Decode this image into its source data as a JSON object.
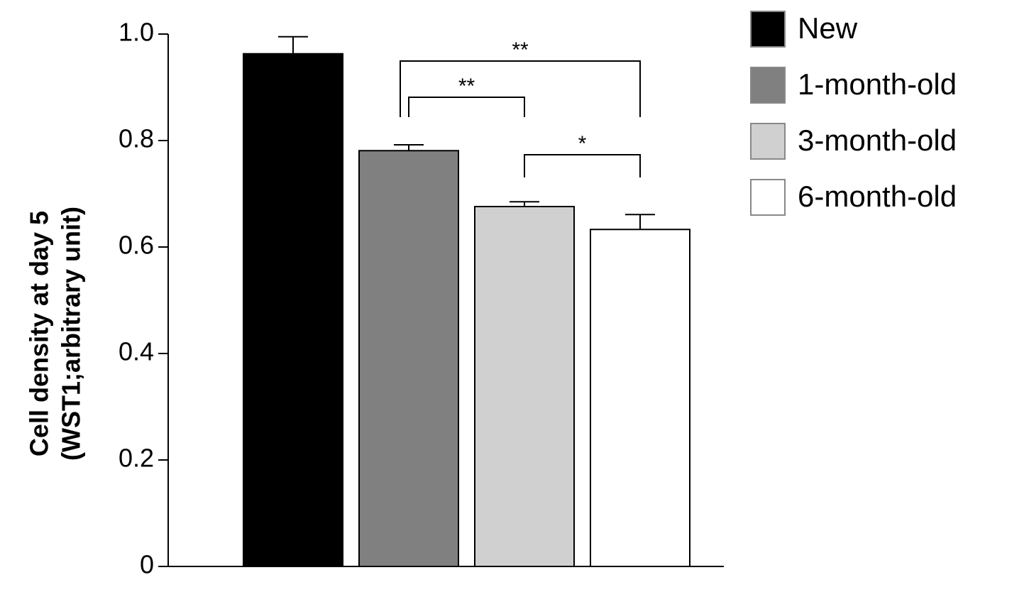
{
  "chart_data": {
    "type": "bar",
    "y_label": [
      "Cell density at day 5",
      "(WST1;arbitrary unit)"
    ],
    "categories": [
      "New",
      "1-month-old",
      "3-month-old",
      "6-month-old"
    ],
    "values": [
      0.963,
      0.781,
      0.676,
      0.633
    ],
    "errors": [
      0.032,
      0.011,
      0.009,
      0.028
    ],
    "colors": [
      "#000000",
      "#808080",
      "#d0d0d0",
      "#ffffff"
    ],
    "ylim": [
      0,
      1
    ],
    "yticks": [
      0,
      0.2,
      0.4,
      0.6,
      0.8,
      {
        "value": 1,
        "label": "1.0"
      }
    ],
    "legend": "right",
    "significance": [
      {
        "from": "1-month-old",
        "to": "6-month-old",
        "label": "**"
      },
      {
        "from": "1-month-old",
        "to": "3-month-old",
        "label": "**"
      },
      {
        "from": "3-month-old",
        "to": "6-month-old",
        "label": "*"
      }
    ]
  }
}
